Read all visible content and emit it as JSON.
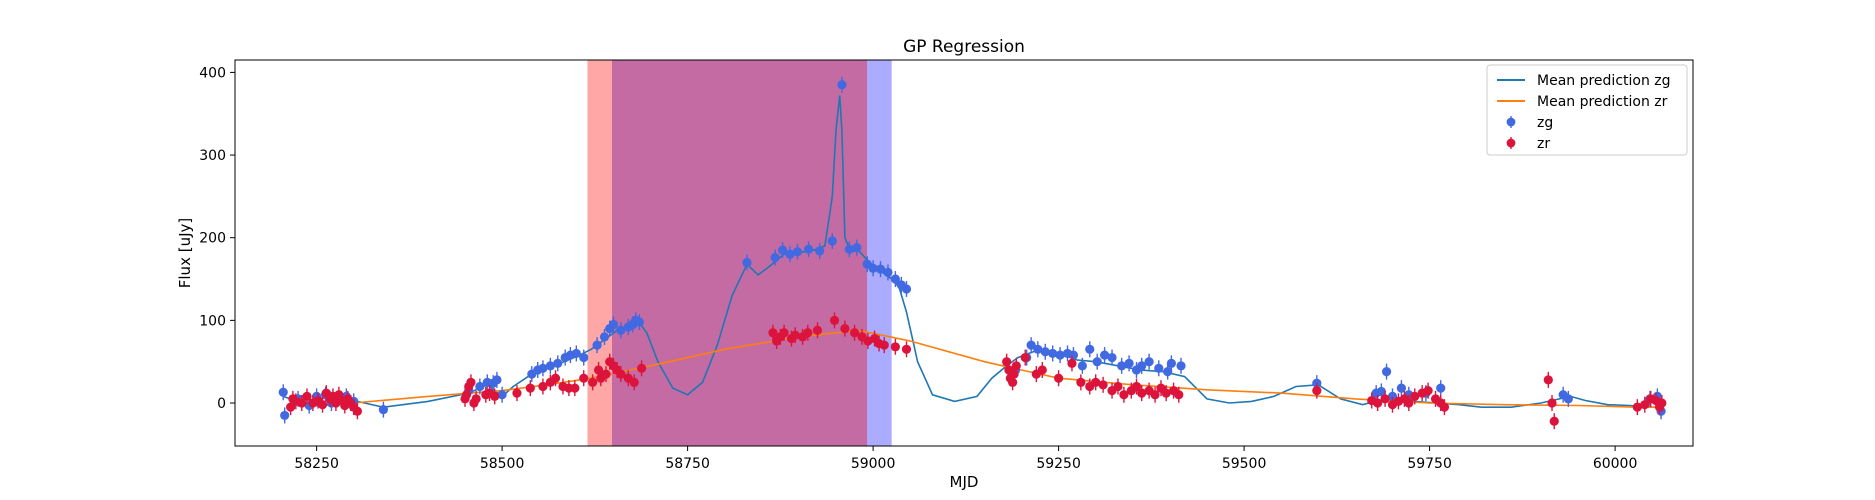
{
  "chart_data": {
    "type": "scatter",
    "title": "GP Regression",
    "xlabel": "MJD",
    "ylabel": "Flux [uJy]",
    "xlim": [
      58140,
      60105
    ],
    "ylim": [
      -52,
      415
    ],
    "xticks": [
      58250,
      58500,
      58750,
      59000,
      59250,
      59500,
      59750,
      60000
    ],
    "yticks": [
      0,
      100,
      200,
      300,
      400
    ],
    "legend_position": "top-right",
    "legend": [
      {
        "label": "Mean prediction zg",
        "kind": "line",
        "color": "#1f77b4"
      },
      {
        "label": "Mean prediction zr",
        "kind": "line",
        "color": "#ff7f0e"
      },
      {
        "label": "zg",
        "kind": "errorbar",
        "color": "#4169e1"
      },
      {
        "label": "zr",
        "kind": "errorbar",
        "color": "#dc143c"
      }
    ],
    "shaded_regions": [
      {
        "x0": 58615,
        "x1": 58648,
        "color": "#ff0000",
        "opacity": 0.35
      },
      {
        "x0": 58648,
        "x1": 58992,
        "color": "#c46ba3",
        "opacity": 1.0
      },
      {
        "x0": 58992,
        "x1": 59025,
        "color": "#0000ff",
        "opacity": 0.33
      }
    ],
    "series": [
      {
        "name": "Mean prediction zg",
        "type": "line",
        "color": "#1f77b4",
        "x": [
          58205,
          58230,
          58255,
          58280,
          58305,
          58340,
          58400,
          58455,
          58480,
          58500,
          58515,
          58540,
          58570,
          58600,
          58620,
          58640,
          58655,
          58670,
          58685,
          58695,
          58710,
          58730,
          58750,
          58770,
          58790,
          58810,
          58830,
          58845,
          58860,
          58880,
          58900,
          58920,
          58935,
          58945,
          58950,
          58955,
          58958,
          58962,
          58970,
          58980,
          58995,
          59010,
          59025,
          59035,
          59045,
          59060,
          59080,
          59110,
          59140,
          59160,
          59180,
          59195,
          59210,
          59225,
          59250,
          59275,
          59300,
          59330,
          59360,
          59390,
          59420,
          59450,
          59480,
          59510,
          59540,
          59570,
          59600,
          59630,
          59660,
          59680,
          59700,
          59730,
          59760,
          59790,
          59820,
          59860,
          59900,
          59925,
          59940,
          59960,
          59990,
          60020,
          60045,
          60065
        ],
        "y": [
          8,
          0,
          -4,
          0,
          2,
          -5,
          2,
          12,
          22,
          8,
          20,
          35,
          45,
          56,
          65,
          78,
          88,
          92,
          97,
          85,
          50,
          18,
          10,
          25,
          70,
          130,
          168,
          155,
          165,
          180,
          182,
          185,
          190,
          250,
          330,
          372,
          330,
          200,
          183,
          185,
          170,
          160,
          150,
          140,
          110,
          50,
          10,
          2,
          8,
          30,
          45,
          55,
          60,
          65,
          60,
          52,
          50,
          45,
          40,
          38,
          32,
          5,
          0,
          2,
          8,
          20,
          22,
          5,
          -2,
          3,
          5,
          2,
          0,
          -2,
          -5,
          -5,
          0,
          5,
          8,
          3,
          -2,
          -3,
          -5,
          -5
        ]
      },
      {
        "name": "Mean prediction zr",
        "type": "line",
        "color": "#ff7f0e",
        "x": [
          58300,
          58400,
          58500,
          58560,
          58620,
          58700,
          58800,
          58900,
          58980,
          59050,
          59150,
          59200,
          59250,
          59350,
          59450,
          59550,
          59650,
          59750,
          59850,
          59950,
          60030,
          60065
        ],
        "y": [
          0,
          8,
          15,
          22,
          30,
          45,
          65,
          80,
          88,
          75,
          50,
          40,
          30,
          22,
          16,
          12,
          5,
          0,
          -2,
          -3,
          -5,
          -5
        ]
      },
      {
        "name": "zg",
        "type": "scatter",
        "color": "#4169e1",
        "x": [
          58205,
          58207,
          58225,
          58240,
          58250,
          58262,
          58270,
          58283,
          58290,
          58300,
          58340,
          58455,
          58470,
          58480,
          58488,
          58493,
          58500,
          58540,
          58548,
          58555,
          58565,
          58575,
          58585,
          58592,
          58600,
          58610,
          58628,
          58638,
          58645,
          58650,
          58660,
          58670,
          58676,
          58680,
          58685,
          58830,
          58868,
          58878,
          58888,
          58898,
          58913,
          58928,
          58945,
          58958,
          58968,
          58978,
          58992,
          59000,
          59010,
          59020,
          59030,
          59038,
          59045,
          59192,
          59207,
          59213,
          59222,
          59232,
          59242,
          59252,
          59262,
          59270,
          59282,
          59292,
          59302,
          59312,
          59322,
          59335,
          59345,
          59355,
          59362,
          59372,
          59385,
          59397,
          59402,
          59415,
          59598,
          59678,
          59685,
          59692,
          59700,
          59712,
          59722,
          59745,
          59765,
          59930,
          59937,
          60047,
          60057,
          60062
        ],
        "y": [
          13,
          -15,
          5,
          -3,
          8,
          10,
          0,
          5,
          8,
          2,
          -8,
          15,
          20,
          25,
          24,
          28,
          10,
          35,
          40,
          42,
          45,
          48,
          55,
          58,
          60,
          55,
          70,
          80,
          90,
          95,
          88,
          92,
          95,
          100,
          98,
          170,
          176,
          185,
          180,
          183,
          186,
          184,
          196,
          385,
          186,
          188,
          168,
          163,
          162,
          158,
          150,
          143,
          138,
          40,
          55,
          70,
          65,
          62,
          60,
          58,
          60,
          58,
          45,
          65,
          50,
          58,
          55,
          45,
          48,
          40,
          45,
          50,
          42,
          38,
          48,
          45,
          24,
          12,
          14,
          38,
          8,
          18,
          10,
          12,
          18,
          10,
          5,
          5,
          8,
          -10
        ]
      },
      {
        "name": "zr",
        "type": "scatter",
        "color": "#dc143c",
        "x": [
          58215,
          58218,
          58222,
          58230,
          58237,
          58245,
          58252,
          58258,
          58263,
          58268,
          58272,
          58276,
          58280,
          58284,
          58288,
          58292,
          58296,
          58300,
          58305,
          58450,
          58452,
          58455,
          58458,
          58462,
          58465,
          58478,
          58483,
          58490,
          58520,
          58538,
          58555,
          58565,
          58572,
          58582,
          58590,
          58598,
          58610,
          58622,
          58630,
          58633,
          58640,
          58645,
          58650,
          58655,
          58660,
          58670,
          58678,
          58688,
          58865,
          58870,
          58875,
          58880,
          58890,
          58895,
          58905,
          58912,
          58925,
          58948,
          58962,
          58975,
          58985,
          58993,
          59002,
          59008,
          59015,
          59030,
          59045,
          59180,
          59183,
          59185,
          59188,
          59190,
          59193,
          59205,
          59220,
          59228,
          59250,
          59268,
          59280,
          59292,
          59300,
          59310,
          59322,
          59330,
          59338,
          59348,
          59355,
          59362,
          59372,
          59380,
          59388,
          59395,
          59405,
          59412,
          59598,
          59672,
          59680,
          59690,
          59700,
          59708,
          59716,
          59722,
          59730,
          59740,
          59748,
          59758,
          59765,
          59770,
          59910,
          59915,
          59918,
          60030,
          60040,
          60048,
          60055,
          60060,
          60063
        ],
        "y": [
          -5,
          5,
          2,
          0,
          8,
          0,
          3,
          -2,
          12,
          5,
          8,
          0,
          10,
          3,
          -3,
          5,
          0,
          -5,
          -10,
          5,
          10,
          20,
          25,
          0,
          5,
          10,
          12,
          8,
          12,
          18,
          20,
          25,
          30,
          20,
          18,
          18,
          30,
          25,
          40,
          30,
          35,
          50,
          45,
          40,
          35,
          30,
          25,
          42,
          85,
          75,
          80,
          85,
          78,
          82,
          80,
          85,
          88,
          100,
          90,
          85,
          80,
          75,
          78,
          72,
          70,
          68,
          65,
          50,
          40,
          30,
          25,
          35,
          45,
          55,
          35,
          40,
          30,
          48,
          25,
          20,
          25,
          22,
          15,
          20,
          10,
          15,
          20,
          12,
          15,
          10,
          18,
          12,
          15,
          10,
          15,
          3,
          0,
          5,
          -2,
          2,
          5,
          0,
          8,
          12,
          15,
          5,
          0,
          -5,
          28,
          0,
          -22,
          -5,
          -2,
          5,
          3,
          -5,
          0
        ]
      }
    ]
  }
}
